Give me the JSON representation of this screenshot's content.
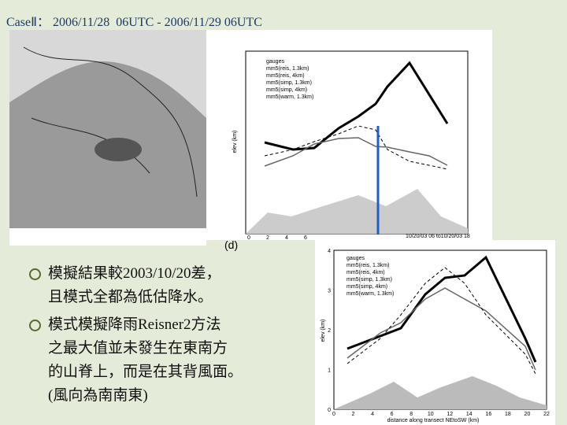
{
  "header": {
    "title": "CaseⅡ： 2006/11/28  06UTC - 2006/11/29 06UTC"
  },
  "bullets": [
    {
      "lines": [
        "模擬結果較2003/10/20差，",
        "且模式全都為低估降水。"
      ]
    },
    {
      "lines": [
        "模式模擬降雨Reisner2方法",
        "之最大值並未發生在東南方",
        "的山脊上，而是在其背風面。",
        "(風向為南南東)"
      ]
    }
  ],
  "figure_top": {
    "label": "(d)",
    "caption": "10/20/03 06 to10/20/03 18",
    "y_label": "elev (km)",
    "legend": [
      "gauges",
      "mm5(reis, 1.3km)",
      "mm5(reis, 4km)",
      "mm5(simp, 1.3km)",
      "mm5(simp, 4km)",
      "mm5(warm, 1.3km)"
    ],
    "x_ticks": [
      "0",
      "2",
      "4",
      "6"
    ]
  },
  "figure_bottom": {
    "y_label": "elev (km)",
    "x_label": "distance along transect NEtoSW (km)",
    "legend": [
      "gauges",
      "mm5(reis, 1.3km)",
      "mm5(reis, 4km)",
      "mm5(simp, 1.3km)",
      "mm5(simp, 4km)",
      "mm5(warm, 1.3km)"
    ],
    "x_ticks": [
      "0",
      "2",
      "4",
      "6",
      "8",
      "10",
      "12",
      "14",
      "16",
      "18",
      "20",
      "22"
    ],
    "y_ticks": [
      "0",
      "1",
      "2",
      "3",
      "4"
    ]
  }
}
